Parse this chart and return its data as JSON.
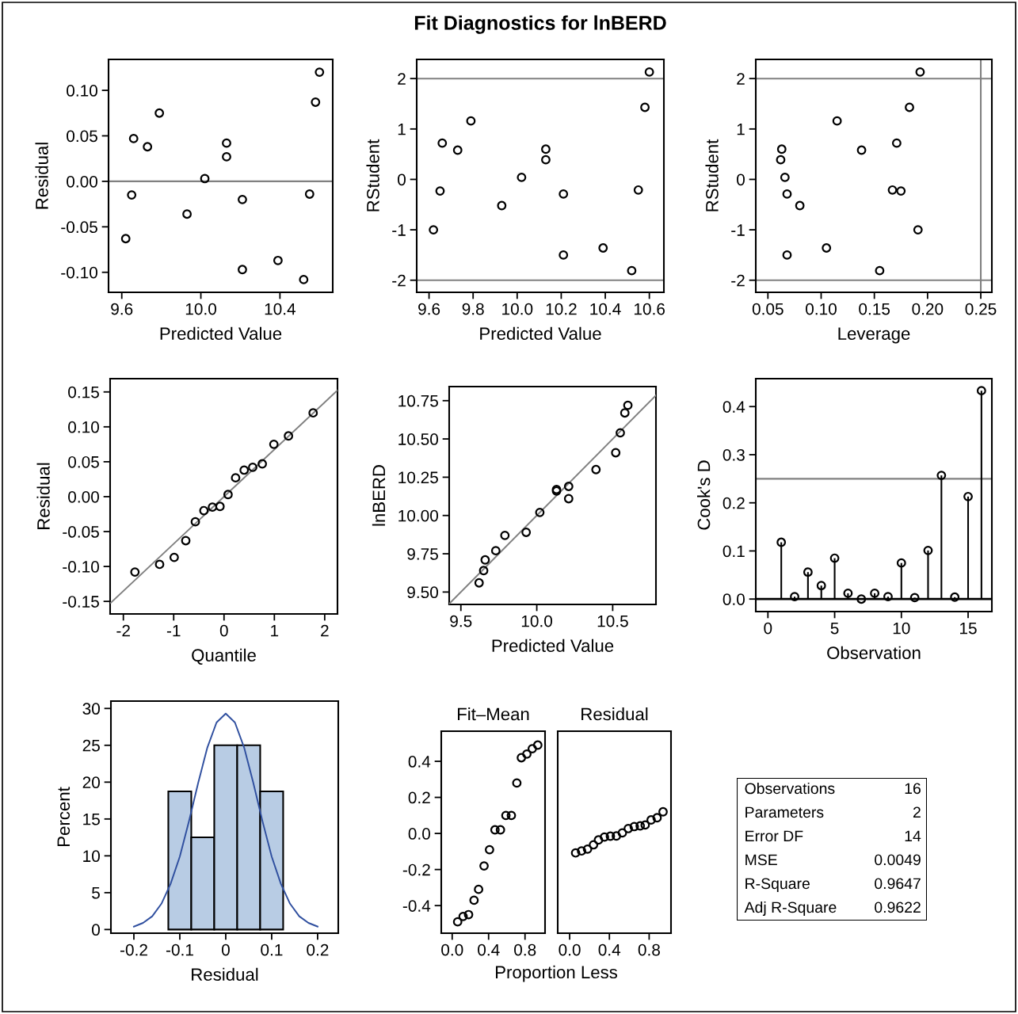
{
  "chart_data": [
    {
      "type": "scatter",
      "xlabel": "Predicted Value",
      "ylabel": "Residual",
      "marker": "circle",
      "x": [
        9.62,
        9.65,
        9.66,
        9.73,
        9.79,
        9.93,
        10.02,
        10.13,
        10.13,
        10.21,
        10.21,
        10.39,
        10.52,
        10.55,
        10.58,
        10.6
      ],
      "values": [
        -0.063,
        -0.015,
        0.047,
        0.038,
        0.075,
        -0.036,
        0.003,
        0.042,
        0.027,
        -0.097,
        -0.02,
        -0.087,
        -0.108,
        -0.014,
        0.087,
        0.12
      ],
      "color": "#000000",
      "xlim": [
        9.533,
        10.667
      ],
      "ylim": [
        -0.122,
        0.134
      ],
      "xticks": [
        9.6,
        {
          "value": 10,
          "label": "10.0"
        },
        10.4
      ],
      "yticks": [
        {
          "value": -0.1,
          "label": "-0.10"
        },
        -0.05,
        {
          "value": 0,
          "label": "0.00"
        },
        0.05,
        {
          "value": 0.1,
          "label": "0.10"
        }
      ],
      "ref_lines": [
        {
          "axis": "y",
          "value": 0,
          "color": "#808080"
        }
      ]
    },
    {
      "type": "scatter",
      "title": "Fit Diagnostics for lnBERD",
      "xlabel": "Predicted Value",
      "ylabel": "RStudent",
      "marker": "circle",
      "x": [
        9.62,
        9.65,
        9.66,
        9.73,
        9.79,
        9.93,
        10.02,
        10.13,
        10.13,
        10.21,
        10.21,
        10.39,
        10.52,
        10.55,
        10.58,
        10.6
      ],
      "values": [
        -1.0,
        -0.23,
        0.72,
        0.58,
        1.16,
        -0.52,
        0.04,
        0.6,
        0.39,
        -1.5,
        -0.29,
        -1.36,
        -1.81,
        -0.21,
        1.43,
        2.13
      ],
      "color": "#000000",
      "xlim": [
        9.544,
        10.666
      ],
      "ylim": [
        -2.24,
        2.38
      ],
      "xticks": [
        9.6,
        9.8,
        {
          "value": 10,
          "label": "10.0"
        },
        10.2,
        10.4,
        10.6
      ],
      "yticks": [
        -2,
        -1,
        0,
        1,
        2
      ],
      "ref_lines": [
        {
          "axis": "y",
          "value": 2,
          "color": "#808080"
        },
        {
          "axis": "y",
          "value": -2,
          "color": "#808080"
        }
      ]
    },
    {
      "type": "scatter",
      "xlabel": "Leverage",
      "ylabel": "RStudent",
      "marker": "circle",
      "x": [
        0.191,
        0.175,
        0.171,
        0.138,
        0.115,
        0.08,
        0.066,
        0.063,
        0.062,
        0.068,
        0.068,
        0.105,
        0.155,
        0.167,
        0.183,
        0.193
      ],
      "values": [
        -1.0,
        -0.23,
        0.72,
        0.58,
        1.16,
        -0.52,
        0.04,
        0.6,
        0.39,
        -1.5,
        -0.29,
        -1.36,
        -1.81,
        -0.21,
        1.43,
        2.13
      ],
      "color": "#000000",
      "xlim": [
        0.0386,
        0.2604
      ],
      "ylim": [
        -2.24,
        2.38
      ],
      "xticks": [
        0.05,
        {
          "value": 0.1,
          "label": "0.10"
        },
        0.15,
        {
          "value": 0.2,
          "label": "0.20"
        },
        0.25
      ],
      "yticks": [
        -2,
        -1,
        0,
        1,
        2
      ],
      "ref_lines": [
        {
          "axis": "y",
          "value": 2,
          "color": "#808080"
        },
        {
          "axis": "y",
          "value": -2,
          "color": "#808080"
        },
        {
          "axis": "x",
          "value": 0.25,
          "color": "#808080"
        }
      ]
    },
    {
      "type": "scatter",
      "xlabel": "Quantile",
      "ylabel": "Residual",
      "xlim": [
        -2.263,
        2.254
      ],
      "ylim": [
        -0.168,
        0.169
      ],
      "xticks": [
        -2,
        -1,
        0,
        1,
        2
      ],
      "yticks": [
        -0.15,
        {
          "value": -0.1,
          "label": "-0.10"
        },
        -0.05,
        {
          "value": 0,
          "label": "0.00"
        },
        0.05,
        {
          "value": 0.1,
          "label": "0.10"
        },
        0.15
      ],
      "series": [
        {
          "type": "scatter",
          "marker": "circle",
          "color": "#000000",
          "x": [
            -1.77,
            -1.28,
            -0.99,
            -0.76,
            -0.57,
            -0.4,
            -0.23,
            -0.08,
            0.08,
            0.23,
            0.4,
            0.57,
            0.76,
            0.99,
            1.28,
            1.77
          ],
          "values": [
            -0.108,
            -0.097,
            -0.087,
            -0.063,
            -0.036,
            -0.02,
            -0.015,
            -0.014,
            0.003,
            0.027,
            0.038,
            0.042,
            0.047,
            0.075,
            0.087,
            0.12
          ]
        },
        {
          "type": "line",
          "color": "#808080",
          "x": [
            -2.25,
            2.25
          ],
          "values": [
            -0.152,
            0.152
          ]
        }
      ]
    },
    {
      "type": "scatter",
      "xlabel": "Predicted Value",
      "ylabel": "lnBERD",
      "xlim": [
        9.423,
        10.785
      ],
      "ylim": [
        9.419,
        10.842
      ],
      "xticks": [
        9.5,
        {
          "value": 10,
          "label": "10.0"
        },
        10.5
      ],
      "yticks": [
        {
          "value": 9.5,
          "label": "9.50"
        },
        9.75,
        {
          "value": 10,
          "label": "10.00"
        },
        10.25,
        {
          "value": 10.5,
          "label": "10.50"
        },
        10.75
      ],
      "series": [
        {
          "type": "scatter",
          "marker": "circle",
          "color": "#000000",
          "x": [
            9.62,
            9.65,
            9.66,
            9.73,
            9.79,
            9.93,
            10.02,
            10.13,
            10.13,
            10.21,
            10.21,
            10.39,
            10.52,
            10.55,
            10.58,
            10.6
          ],
          "values": [
            9.56,
            9.64,
            9.71,
            9.77,
            9.87,
            9.89,
            10.02,
            10.17,
            10.16,
            10.11,
            10.19,
            10.3,
            10.41,
            10.54,
            10.67,
            10.72
          ]
        },
        {
          "type": "line",
          "color": "#808080",
          "x": [
            9.423,
            10.785
          ],
          "values": [
            9.423,
            10.785
          ]
        }
      ]
    },
    {
      "type": "lollipop",
      "xlabel": "Observation",
      "ylabel": "Cook's D",
      "marker": "circle",
      "color": "#000000",
      "x": [
        1,
        2,
        3,
        4,
        5,
        6,
        7,
        8,
        9,
        10,
        11,
        12,
        13,
        14,
        15,
        16
      ],
      "values": [
        0.118,
        0.005,
        0.056,
        0.028,
        0.085,
        0.012,
        0.0,
        0.012,
        0.005,
        0.075,
        0.003,
        0.101,
        0.257,
        0.004,
        0.213,
        0.433
      ],
      "xlim": [
        -0.91,
        16.78
      ],
      "ylim": [
        -0.026,
        0.458
      ],
      "xticks": [
        0,
        5,
        10,
        15
      ],
      "yticks": [
        {
          "value": 0,
          "label": "0.0"
        },
        0.1,
        0.2,
        0.3,
        0.4
      ],
      "ref_lines": [
        {
          "axis": "y",
          "value": 0.25,
          "color": "#808080"
        }
      ]
    },
    {
      "type": "histogram",
      "xlabel": "Residual",
      "ylabel": "Percent",
      "bins": [
        -0.125,
        -0.075,
        -0.025,
        0.025,
        0.075,
        0.125
      ],
      "values": [
        18.75,
        12.5,
        25,
        25,
        18.75
      ],
      "color": "#b8cce4",
      "xlim": [
        -0.25,
        0.245
      ],
      "ylim": [
        -0.5,
        31
      ],
      "xticks": [
        -0.2,
        -0.1,
        0,
        0.1,
        0.2
      ],
      "yticks": [
        0,
        5,
        10,
        15,
        20,
        25,
        30
      ],
      "series": [
        {
          "type": "line",
          "color": "#2f4f9f",
          "x": [
            -0.2,
            -0.18,
            -0.16,
            -0.14,
            -0.12,
            -0.1,
            -0.08,
            -0.06,
            -0.04,
            -0.02,
            0,
            0.02,
            0.04,
            0.06,
            0.08,
            0.1,
            0.12,
            0.14,
            0.16,
            0.18,
            0.2
          ],
          "values": [
            0.4,
            0.9,
            1.8,
            3.5,
            6.2,
            9.9,
            14.7,
            19.9,
            24.7,
            28.1,
            29.3,
            28.1,
            24.7,
            19.9,
            14.7,
            9.9,
            6.2,
            3.5,
            1.8,
            0.9,
            0.4
          ]
        }
      ]
    },
    {
      "type": "scatter",
      "title": "Fit–Mean",
      "xlabel": "Proportion Less",
      "marker": "circle",
      "color": "#000000",
      "x": [
        0.06,
        0.12,
        0.18,
        0.24,
        0.29,
        0.35,
        0.41,
        0.47,
        0.53,
        0.59,
        0.65,
        0.71,
        0.76,
        0.82,
        0.88,
        0.94
      ],
      "values": [
        -0.49,
        -0.46,
        -0.45,
        -0.37,
        -0.31,
        -0.18,
        -0.09,
        0.02,
        0.02,
        0.1,
        0.1,
        0.28,
        0.42,
        0.44,
        0.47,
        0.49
      ],
      "xlim": [
        -0.12,
        1.02
      ],
      "ylim": [
        -0.553,
        0.567
      ],
      "xticks": [
        {
          "value": 0,
          "label": "0.0"
        },
        0.4,
        0.8
      ],
      "yticks": [
        -0.4,
        -0.2,
        {
          "value": 0,
          "label": "0.0"
        },
        0.2,
        0.4
      ]
    },
    {
      "type": "scatter",
      "title": "Residual",
      "marker": "circle",
      "color": "#000000",
      "tick_labels": "x",
      "x": [
        0.06,
        0.12,
        0.18,
        0.24,
        0.29,
        0.35,
        0.41,
        0.47,
        0.53,
        0.59,
        0.65,
        0.71,
        0.76,
        0.82,
        0.88,
        0.94
      ],
      "values": [
        -0.108,
        -0.097,
        -0.087,
        -0.063,
        -0.036,
        -0.02,
        -0.015,
        -0.014,
        0.003,
        0.027,
        0.038,
        0.042,
        0.047,
        0.075,
        0.087,
        0.12
      ],
      "xlim": [
        -0.12,
        1.02
      ],
      "ylim": [
        -0.553,
        0.567
      ],
      "xticks": [
        {
          "value": 0,
          "label": "0.0"
        },
        0.4,
        0.8
      ]
    },
    {
      "type": "other",
      "categories": [
        "Observations",
        "Parameters",
        "Error DF",
        "MSE",
        "R-Square",
        "Adj R-Square"
      ],
      "values": [
        16,
        2,
        14,
        0.0049,
        0.9647,
        0.9622
      ],
      "data_labels": true
    }
  ]
}
